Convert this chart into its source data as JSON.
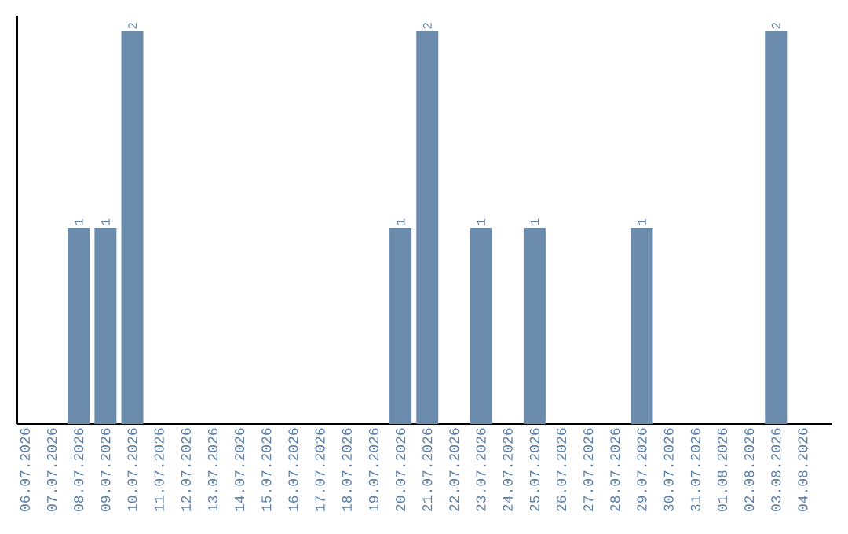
{
  "chart_data": {
    "type": "bar",
    "categories": [
      "06.07.2026",
      "07.07.2026",
      "08.07.2026",
      "09.07.2026",
      "10.07.2026",
      "11.07.2026",
      "12.07.2026",
      "13.07.2026",
      "14.07.2026",
      "15.07.2026",
      "16.07.2026",
      "17.07.2026",
      "18.07.2026",
      "19.07.2026",
      "20.07.2026",
      "21.07.2026",
      "22.07.2026",
      "23.07.2026",
      "24.07.2026",
      "25.07.2026",
      "26.07.2026",
      "27.07.2026",
      "28.07.2026",
      "29.07.2026",
      "30.07.2026",
      "31.07.2026",
      "01.08.2026",
      "02.08.2026",
      "03.08.2026",
      "04.08.2026"
    ],
    "values": [
      0,
      0,
      1,
      1,
      2,
      0,
      0,
      0,
      0,
      0,
      0,
      0,
      0,
      0,
      1,
      2,
      0,
      1,
      0,
      1,
      0,
      0,
      0,
      1,
      0,
      0,
      0,
      0,
      2,
      0
    ],
    "value_labels": [
      null,
      null,
      "1",
      "1",
      "2",
      null,
      null,
      null,
      null,
      null,
      null,
      null,
      null,
      null,
      "1",
      "2",
      null,
      "1",
      null,
      "1",
      null,
      null,
      null,
      "1",
      null,
      null,
      null,
      null,
      "2",
      null
    ],
    "color": "#6a8bab",
    "tick_labels": "x"
  }
}
